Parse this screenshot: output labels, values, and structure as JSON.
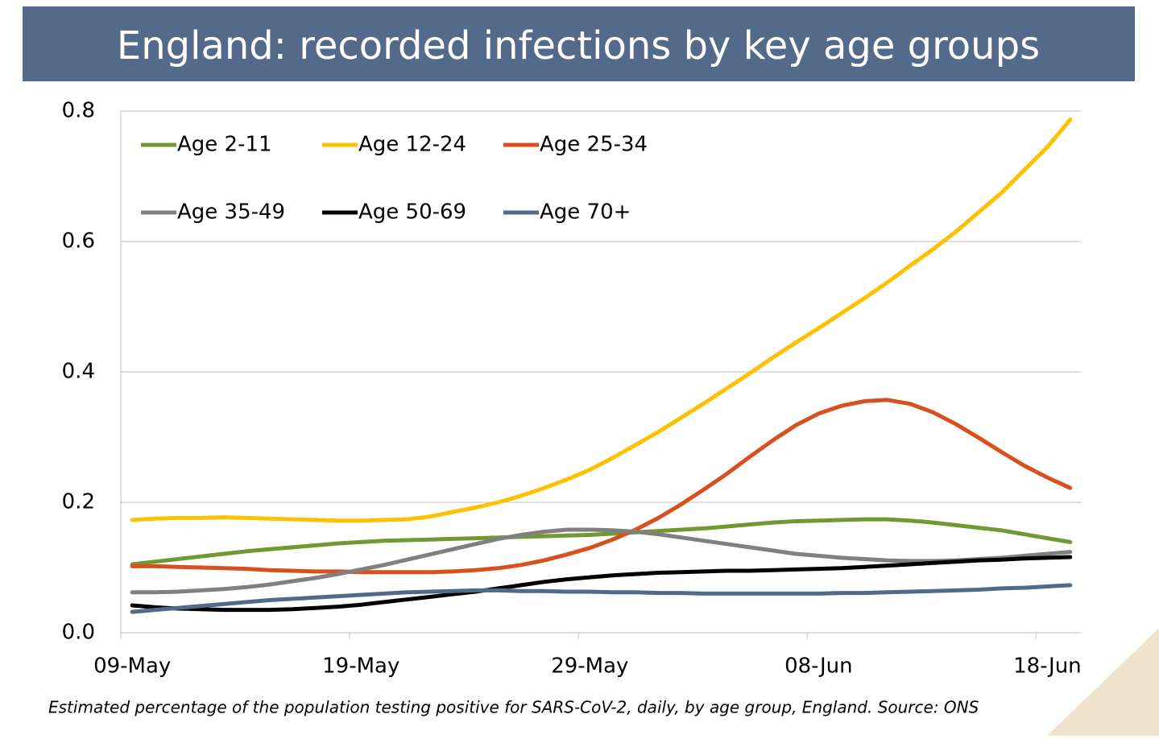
{
  "chart_data": {
    "type": "line",
    "title": "England: recorded infections by key age groups",
    "caption": "Estimated percentage of the population testing positive for SARS-CoV-2, daily, by age group, England. Source: ONS",
    "categories": [
      "09-May",
      null,
      null,
      null,
      null,
      null,
      null,
      null,
      null,
      null,
      "19-May",
      null,
      null,
      null,
      null,
      null,
      null,
      null,
      null,
      null,
      "29-May",
      null,
      null,
      null,
      null,
      null,
      null,
      null,
      null,
      null,
      "08-Jun",
      null,
      null,
      null,
      null,
      null,
      null,
      null,
      null,
      null,
      "18-Jun",
      null
    ],
    "ylim": [
      0,
      0.8
    ],
    "yticks": [
      {
        "value": 0,
        "label": "0.0"
      },
      0.2,
      0.4,
      0.6,
      0.8
    ],
    "grid": true,
    "legend": "upper left",
    "series": [
      {
        "name": "Age 2-11",
        "color": "#6f9a2f",
        "values": [
          0.105,
          0.109,
          0.113,
          0.117,
          0.121,
          0.125,
          0.128,
          0.131,
          0.134,
          0.137,
          0.139,
          0.141,
          0.142,
          0.143,
          0.144,
          0.145,
          0.146,
          0.147,
          0.148,
          0.149,
          0.15,
          0.152,
          0.154,
          0.156,
          0.158,
          0.16,
          0.163,
          0.166,
          0.169,
          0.171,
          0.172,
          0.173,
          0.174,
          0.174,
          0.172,
          0.169,
          0.165,
          0.161,
          0.157,
          0.151,
          0.145,
          0.139
        ]
      },
      {
        "name": "Age 12-24",
        "color": "#ffc000",
        "values": [
          0.173,
          0.175,
          0.176,
          0.176,
          0.177,
          0.176,
          0.175,
          0.174,
          0.173,
          0.172,
          0.172,
          0.173,
          0.174,
          0.178,
          0.185,
          0.192,
          0.2,
          0.21,
          0.222,
          0.235,
          0.25,
          0.268,
          0.288,
          0.308,
          0.33,
          0.352,
          0.375,
          0.398,
          0.422,
          0.445,
          0.467,
          0.49,
          0.513,
          0.537,
          0.563,
          0.588,
          0.615,
          0.645,
          0.675,
          0.71,
          0.745,
          0.787
        ]
      },
      {
        "name": "Age 25-34",
        "color": "#d9501e",
        "values": [
          0.102,
          0.102,
          0.101,
          0.1,
          0.099,
          0.098,
          0.096,
          0.095,
          0.094,
          0.094,
          0.093,
          0.093,
          0.093,
          0.093,
          0.094,
          0.096,
          0.099,
          0.104,
          0.111,
          0.12,
          0.13,
          0.143,
          0.158,
          0.176,
          0.197,
          0.22,
          0.244,
          0.27,
          0.295,
          0.318,
          0.336,
          0.348,
          0.355,
          0.357,
          0.351,
          0.338,
          0.32,
          0.299,
          0.277,
          0.256,
          0.238,
          0.222
        ]
      },
      {
        "name": "Age 35-49",
        "color": "#808080",
        "values": [
          0.062,
          0.062,
          0.063,
          0.065,
          0.067,
          0.07,
          0.074,
          0.079,
          0.084,
          0.09,
          0.097,
          0.104,
          0.112,
          0.12,
          0.128,
          0.136,
          0.144,
          0.15,
          0.155,
          0.158,
          0.158,
          0.157,
          0.155,
          0.151,
          0.146,
          0.141,
          0.136,
          0.131,
          0.126,
          0.121,
          0.118,
          0.115,
          0.113,
          0.111,
          0.11,
          0.11,
          0.111,
          0.113,
          0.115,
          0.118,
          0.121,
          0.124
        ]
      },
      {
        "name": "Age 50-69",
        "color": "#000000",
        "values": [
          0.042,
          0.039,
          0.037,
          0.036,
          0.035,
          0.035,
          0.035,
          0.036,
          0.038,
          0.04,
          0.043,
          0.047,
          0.051,
          0.055,
          0.059,
          0.063,
          0.068,
          0.073,
          0.078,
          0.082,
          0.085,
          0.088,
          0.09,
          0.092,
          0.093,
          0.094,
          0.095,
          0.095,
          0.096,
          0.097,
          0.098,
          0.099,
          0.101,
          0.103,
          0.105,
          0.107,
          0.109,
          0.111,
          0.112,
          0.114,
          0.115,
          0.116
        ]
      },
      {
        "name": "Age 70+",
        "color": "#506a8a",
        "values": [
          0.032,
          0.035,
          0.038,
          0.041,
          0.044,
          0.047,
          0.05,
          0.052,
          0.054,
          0.056,
          0.058,
          0.06,
          0.062,
          0.063,
          0.064,
          0.065,
          0.065,
          0.064,
          0.064,
          0.063,
          0.063,
          0.062,
          0.062,
          0.061,
          0.061,
          0.06,
          0.06,
          0.06,
          0.06,
          0.06,
          0.06,
          0.061,
          0.061,
          0.062,
          0.063,
          0.064,
          0.065,
          0.066,
          0.068,
          0.069,
          0.071,
          0.073
        ]
      }
    ]
  }
}
